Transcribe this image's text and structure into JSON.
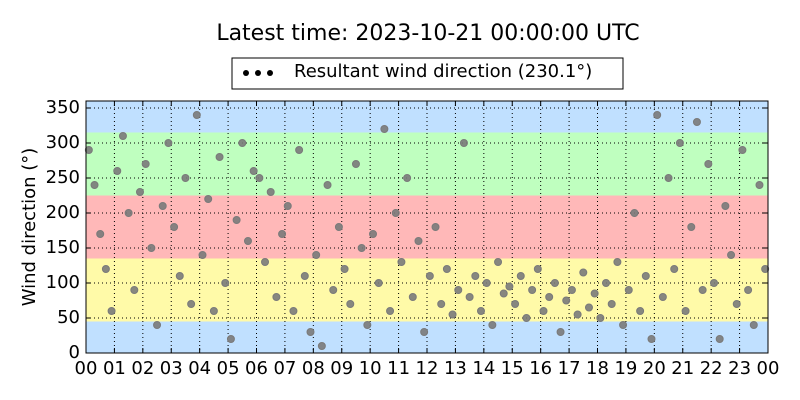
{
  "chart_data": {
    "type": "scatter",
    "title": "Latest time: 2023-10-21 00:00:00 UTC",
    "y_label": "Wind direction (°)",
    "xlim": [
      0,
      24
    ],
    "xticks": [
      {
        "value": 0,
        "label": "00"
      },
      {
        "value": 1,
        "label": "01"
      },
      {
        "value": 2,
        "label": "02"
      },
      {
        "value": 3,
        "label": "03"
      },
      {
        "value": 4,
        "label": "04"
      },
      {
        "value": 5,
        "label": "05"
      },
      {
        "value": 6,
        "label": "06"
      },
      {
        "value": 7,
        "label": "07"
      },
      {
        "value": 8,
        "label": "08"
      },
      {
        "value": 9,
        "label": "09"
      },
      {
        "value": 10,
        "label": "10"
      },
      {
        "value": 11,
        "label": "11"
      },
      {
        "value": 12,
        "label": "12"
      },
      {
        "value": 13,
        "label": "13"
      },
      {
        "value": 14,
        "label": "14"
      },
      {
        "value": 15,
        "label": "15"
      },
      {
        "value": 16,
        "label": "16"
      },
      {
        "value": 17,
        "label": "17"
      },
      {
        "value": 18,
        "label": "18"
      },
      {
        "value": 19,
        "label": "19"
      },
      {
        "value": 20,
        "label": "20"
      },
      {
        "value": 21,
        "label": "21"
      },
      {
        "value": 22,
        "label": "22"
      },
      {
        "value": 23,
        "label": "23"
      },
      {
        "value": 24,
        "label": "00"
      }
    ],
    "ylim": [
      0,
      360
    ],
    "yticks": [
      0,
      50,
      100,
      150,
      200,
      250,
      300,
      350
    ],
    "grid": true,
    "legend_position": "top",
    "bands": [
      {
        "from": 0,
        "to": 45,
        "color": "#c0e0ff"
      },
      {
        "from": 45,
        "to": 135,
        "color": "#fffaa8"
      },
      {
        "from": 135,
        "to": 225,
        "color": "#ffb8b8"
      },
      {
        "from": 225,
        "to": 315,
        "color": "#bfffbf"
      },
      {
        "from": 315,
        "to": 360,
        "color": "#c0e0ff"
      }
    ],
    "series": [
      {
        "name": "Resultant wind direction (230.1°)",
        "color": "#7a7a7a",
        "legend_color": "#000000",
        "x": [
          0.1,
          0.3,
          0.5,
          0.7,
          0.9,
          1.1,
          1.3,
          1.5,
          1.7,
          1.9,
          2.1,
          2.3,
          2.5,
          2.7,
          2.9,
          3.1,
          3.3,
          3.5,
          3.7,
          3.9,
          4.1,
          4.3,
          4.5,
          4.7,
          4.9,
          5.1,
          5.3,
          5.5,
          5.7,
          5.9,
          6.1,
          6.3,
          6.5,
          6.7,
          6.9,
          7.1,
          7.3,
          7.5,
          7.7,
          7.9,
          8.1,
          8.3,
          8.5,
          8.7,
          8.9,
          9.1,
          9.3,
          9.5,
          9.7,
          9.9,
          10.1,
          10.3,
          10.5,
          10.7,
          10.9,
          11.1,
          11.3,
          11.5,
          11.7,
          11.9,
          12.1,
          12.3,
          12.5,
          12.7,
          12.9,
          13.1,
          13.3,
          13.5,
          13.7,
          13.9,
          14.1,
          14.3,
          14.5,
          14.7,
          14.9,
          15.1,
          15.3,
          15.5,
          15.7,
          15.9,
          16.1,
          16.3,
          16.5,
          16.7,
          16.9,
          17.1,
          17.3,
          17.5,
          17.7,
          17.9,
          18.1,
          18.3,
          18.5,
          18.7,
          18.9,
          19.1,
          19.3,
          19.5,
          19.7,
          19.9,
          20.1,
          20.3,
          20.5,
          20.7,
          20.9,
          21.1,
          21.3,
          21.5,
          21.7,
          21.9,
          22.1,
          22.3,
          22.5,
          22.7,
          22.9,
          23.1,
          23.3,
          23.5,
          23.7,
          23.9
        ],
        "values": [
          290,
          240,
          170,
          120,
          60,
          260,
          310,
          200,
          90,
          230,
          270,
          150,
          40,
          210,
          300,
          180,
          110,
          250,
          70,
          340,
          140,
          220,
          60,
          280,
          100,
          20,
          190,
          300,
          160,
          260,
          250,
          130,
          230,
          80,
          170,
          210,
          60,
          290,
          110,
          30,
          140,
          10,
          240,
          90,
          180,
          120,
          70,
          270,
          150,
          40,
          170,
          100,
          320,
          60,
          200,
          130,
          250,
          80,
          160,
          30,
          110,
          180,
          70,
          120,
          55,
          90,
          300,
          80,
          110,
          60,
          100,
          40,
          130,
          85,
          95,
          70,
          110,
          50,
          90,
          120,
          60,
          80,
          100,
          30,
          75,
          90,
          55,
          115,
          65,
          85,
          50,
          100,
          70,
          130,
          40,
          90,
          200,
          60,
          110,
          20,
          340,
          80,
          250,
          120,
          300,
          60,
          180,
          330,
          90,
          270,
          100,
          20,
          210,
          140,
          70,
          290,
          90,
          40,
          240,
          120
        ]
      }
    ]
  }
}
